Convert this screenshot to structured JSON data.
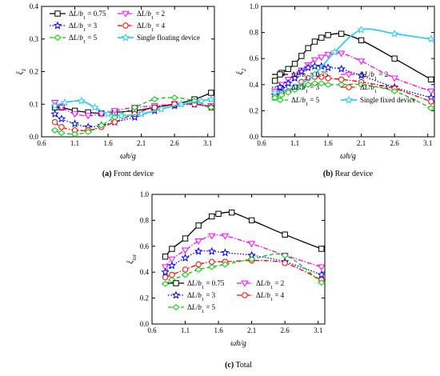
{
  "chart_data": [
    {
      "type": "line",
      "caption_label": "(a)",
      "caption_text": "Front device",
      "xlabel": "ωh/g",
      "ylabel": "ξ1",
      "xlim": [
        0.6,
        3.2
      ],
      "ylim": [
        0.0,
        0.4
      ],
      "xticks": [
        "0.6",
        "1.1",
        "1.6",
        "2.1",
        "2.6",
        "3.1"
      ],
      "yticks": [
        "0.0",
        "0.1",
        "0.2",
        "0.3",
        "0.4"
      ],
      "legend_position": "top",
      "series": [
        {
          "name": "ΔL/b1 = 0.75",
          "color": "#000000",
          "marker": "square",
          "dash": "solid",
          "x": [
            0.8,
            0.9,
            1.1,
            1.3,
            1.5,
            1.7,
            2.0,
            2.3,
            2.6,
            2.9,
            3.15
          ],
          "y": [
            0.09,
            0.09,
            0.08,
            0.075,
            0.072,
            0.075,
            0.08,
            0.09,
            0.1,
            0.115,
            0.135
          ]
        },
        {
          "name": "ΔL/b1 = 2",
          "color": "#ff00ff",
          "marker": "triangle-down",
          "dash": "dashdot",
          "x": [
            0.8,
            0.9,
            1.1,
            1.3,
            1.5,
            1.7,
            2.0,
            2.3,
            2.6,
            2.9,
            3.15
          ],
          "y": [
            0.105,
            0.09,
            0.07,
            0.065,
            0.07,
            0.08,
            0.09,
            0.095,
            0.1,
            0.1,
            0.095
          ]
        },
        {
          "name": "ΔL/b1 = 3",
          "color": "#0000ff",
          "marker": "star",
          "dash": "dot",
          "x": [
            0.8,
            0.9,
            1.1,
            1.3,
            1.5,
            1.7,
            2.0,
            2.3,
            2.6,
            2.9,
            3.15
          ],
          "y": [
            0.07,
            0.055,
            0.04,
            0.03,
            0.035,
            0.045,
            0.06,
            0.08,
            0.095,
            0.1,
            0.09
          ]
        },
        {
          "name": "ΔL/b1 = 4",
          "color": "#ff0000",
          "marker": "circle",
          "dash": "dashdot",
          "x": [
            0.8,
            0.9,
            1.1,
            1.3,
            1.5,
            1.7,
            2.0,
            2.3,
            2.6,
            2.9,
            3.15
          ],
          "y": [
            0.045,
            0.03,
            0.02,
            0.02,
            0.03,
            0.045,
            0.07,
            0.09,
            0.1,
            0.1,
            0.09
          ]
        },
        {
          "name": "ΔL/b1 = 5",
          "color": "#00cc00",
          "marker": "diamond",
          "dash": "dash",
          "x": [
            0.8,
            0.9,
            1.1,
            1.3,
            1.5,
            1.7,
            2.0,
            2.3,
            2.6,
            2.9,
            3.15
          ],
          "y": [
            0.02,
            0.012,
            0.008,
            0.015,
            0.035,
            0.06,
            0.09,
            0.115,
            0.12,
            0.11,
            0.09
          ]
        },
        {
          "name": "Single floating device",
          "color": "#33ccee",
          "marker": "star",
          "dash": "solid",
          "x": [
            0.8,
            0.95,
            1.2,
            1.4,
            1.6,
            1.8,
            2.1,
            2.4,
            2.7,
            3.0,
            3.15
          ],
          "y": [
            0.095,
            0.105,
            0.11,
            0.09,
            0.07,
            0.065,
            0.07,
            0.085,
            0.1,
            0.11,
            0.115
          ]
        }
      ]
    },
    {
      "type": "line",
      "caption_label": "(b)",
      "caption_text": "Rear device",
      "xlabel": "ωh/g",
      "ylabel": "ξ2",
      "xlim": [
        0.6,
        3.2
      ],
      "ylim": [
        0.0,
        1.0
      ],
      "xticks": [
        "0.6",
        "1.1",
        "1.6",
        "2.1",
        "2.6",
        "3.1"
      ],
      "yticks": [
        "0.0",
        "0.2",
        "0.4",
        "0.6",
        "0.8",
        "1.0"
      ],
      "legend_position": "bottom",
      "series": [
        {
          "name": "ΔL/b1 = 0.75",
          "color": "#000000",
          "marker": "square",
          "dash": "solid",
          "x": [
            0.8,
            0.9,
            1.0,
            1.1,
            1.2,
            1.3,
            1.4,
            1.5,
            1.6,
            1.8,
            2.1,
            2.6,
            3.15
          ],
          "y": [
            0.43,
            0.49,
            0.52,
            0.56,
            0.62,
            0.68,
            0.73,
            0.76,
            0.78,
            0.79,
            0.74,
            0.6,
            0.44
          ]
        },
        {
          "name": "ΔL/b1 = 2",
          "color": "#ff00ff",
          "marker": "triangle-down",
          "dash": "dashdot",
          "x": [
            0.8,
            0.9,
            1.0,
            1.1,
            1.2,
            1.3,
            1.4,
            1.5,
            1.6,
            1.8,
            2.1,
            2.6,
            3.15
          ],
          "y": [
            0.35,
            0.4,
            0.44,
            0.47,
            0.51,
            0.55,
            0.59,
            0.61,
            0.63,
            0.64,
            0.58,
            0.45,
            0.35
          ]
        },
        {
          "name": "ΔL/b1 = 3",
          "color": "#0000ff",
          "marker": "star",
          "dash": "dot",
          "x": [
            0.8,
            0.9,
            1.0,
            1.1,
            1.2,
            1.3,
            1.4,
            1.5,
            1.6,
            1.8,
            2.1,
            2.6,
            3.15
          ],
          "y": [
            0.32,
            0.37,
            0.41,
            0.45,
            0.5,
            0.53,
            0.54,
            0.54,
            0.53,
            0.52,
            0.47,
            0.38,
            0.3
          ]
        },
        {
          "name": "ΔL/b1 = 4",
          "color": "#ff0000",
          "marker": "circle",
          "dash": "dashdot",
          "x": [
            0.8,
            0.9,
            1.0,
            1.1,
            1.2,
            1.3,
            1.4,
            1.5,
            1.6,
            1.8,
            2.1,
            2.6,
            3.15
          ],
          "y": [
            0.31,
            0.33,
            0.35,
            0.38,
            0.42,
            0.45,
            0.46,
            0.46,
            0.45,
            0.44,
            0.42,
            0.37,
            0.27
          ]
        },
        {
          "name": "ΔL/b1 = 5",
          "color": "#00cc00",
          "marker": "diamond",
          "dash": "dash",
          "x": [
            0.8,
            0.9,
            1.0,
            1.1,
            1.2,
            1.3,
            1.4,
            1.5,
            1.6,
            1.8,
            2.1,
            2.6,
            3.15
          ],
          "y": [
            0.3,
            0.32,
            0.34,
            0.36,
            0.38,
            0.4,
            0.41,
            0.41,
            0.4,
            0.4,
            0.4,
            0.35,
            0.22
          ]
        },
        {
          "name": "Single fixed device",
          "color": "#33ccee",
          "marker": "star",
          "dash": "solid",
          "x": [
            0.8,
            1.1,
            1.4,
            1.7,
            2.1,
            2.6,
            3.15
          ],
          "y": [
            0.34,
            0.38,
            0.48,
            0.65,
            0.82,
            0.79,
            0.75
          ]
        }
      ]
    },
    {
      "type": "line",
      "caption_label": "(c)",
      "caption_text": "Total",
      "xlabel": "ωh/g",
      "ylabel": "ξtot",
      "xlim": [
        0.6,
        3.2
      ],
      "ylim": [
        0.0,
        1.0
      ],
      "xticks": [
        "0.6",
        "1.1",
        "1.6",
        "2.1",
        "2.6",
        "3.1"
      ],
      "yticks": [
        "0.0",
        "0.2",
        "0.4",
        "0.6",
        "0.8",
        "1.0"
      ],
      "legend_position": "bottom",
      "series": [
        {
          "name": "ΔL/b1 = 0.75",
          "color": "#000000",
          "marker": "square",
          "dash": "solid",
          "x": [
            0.8,
            0.9,
            1.1,
            1.3,
            1.5,
            1.6,
            1.8,
            2.1,
            2.6,
            3.15
          ],
          "y": [
            0.52,
            0.58,
            0.66,
            0.76,
            0.83,
            0.85,
            0.86,
            0.8,
            0.69,
            0.58
          ]
        },
        {
          "name": "ΔL/b1 = 2",
          "color": "#ff00ff",
          "marker": "triangle-down",
          "dash": "dashdot",
          "x": [
            0.8,
            0.9,
            1.1,
            1.3,
            1.5,
            1.7,
            2.1,
            2.6,
            3.15
          ],
          "y": [
            0.44,
            0.5,
            0.57,
            0.64,
            0.68,
            0.68,
            0.62,
            0.53,
            0.44
          ]
        },
        {
          "name": "ΔL/b1 = 3",
          "color": "#0000ff",
          "marker": "star",
          "dash": "dot",
          "x": [
            0.8,
            0.9,
            1.1,
            1.3,
            1.5,
            1.7,
            2.1,
            2.6,
            3.15
          ],
          "y": [
            0.4,
            0.45,
            0.51,
            0.56,
            0.56,
            0.55,
            0.53,
            0.48,
            0.38
          ]
        },
        {
          "name": "ΔL/b1 = 4",
          "color": "#ff0000",
          "marker": "circle",
          "dash": "dashdot",
          "x": [
            0.8,
            0.9,
            1.1,
            1.3,
            1.5,
            1.7,
            2.1,
            2.6,
            3.15
          ],
          "y": [
            0.36,
            0.38,
            0.42,
            0.46,
            0.48,
            0.48,
            0.49,
            0.47,
            0.34
          ]
        },
        {
          "name": "ΔL/b1 = 5",
          "color": "#00cc00",
          "marker": "diamond",
          "dash": "dash",
          "x": [
            0.8,
            0.9,
            1.1,
            1.3,
            1.5,
            1.7,
            2.1,
            2.6,
            3.15
          ],
          "y": [
            0.31,
            0.34,
            0.38,
            0.42,
            0.44,
            0.46,
            0.5,
            0.53,
            0.32
          ]
        }
      ]
    }
  ]
}
